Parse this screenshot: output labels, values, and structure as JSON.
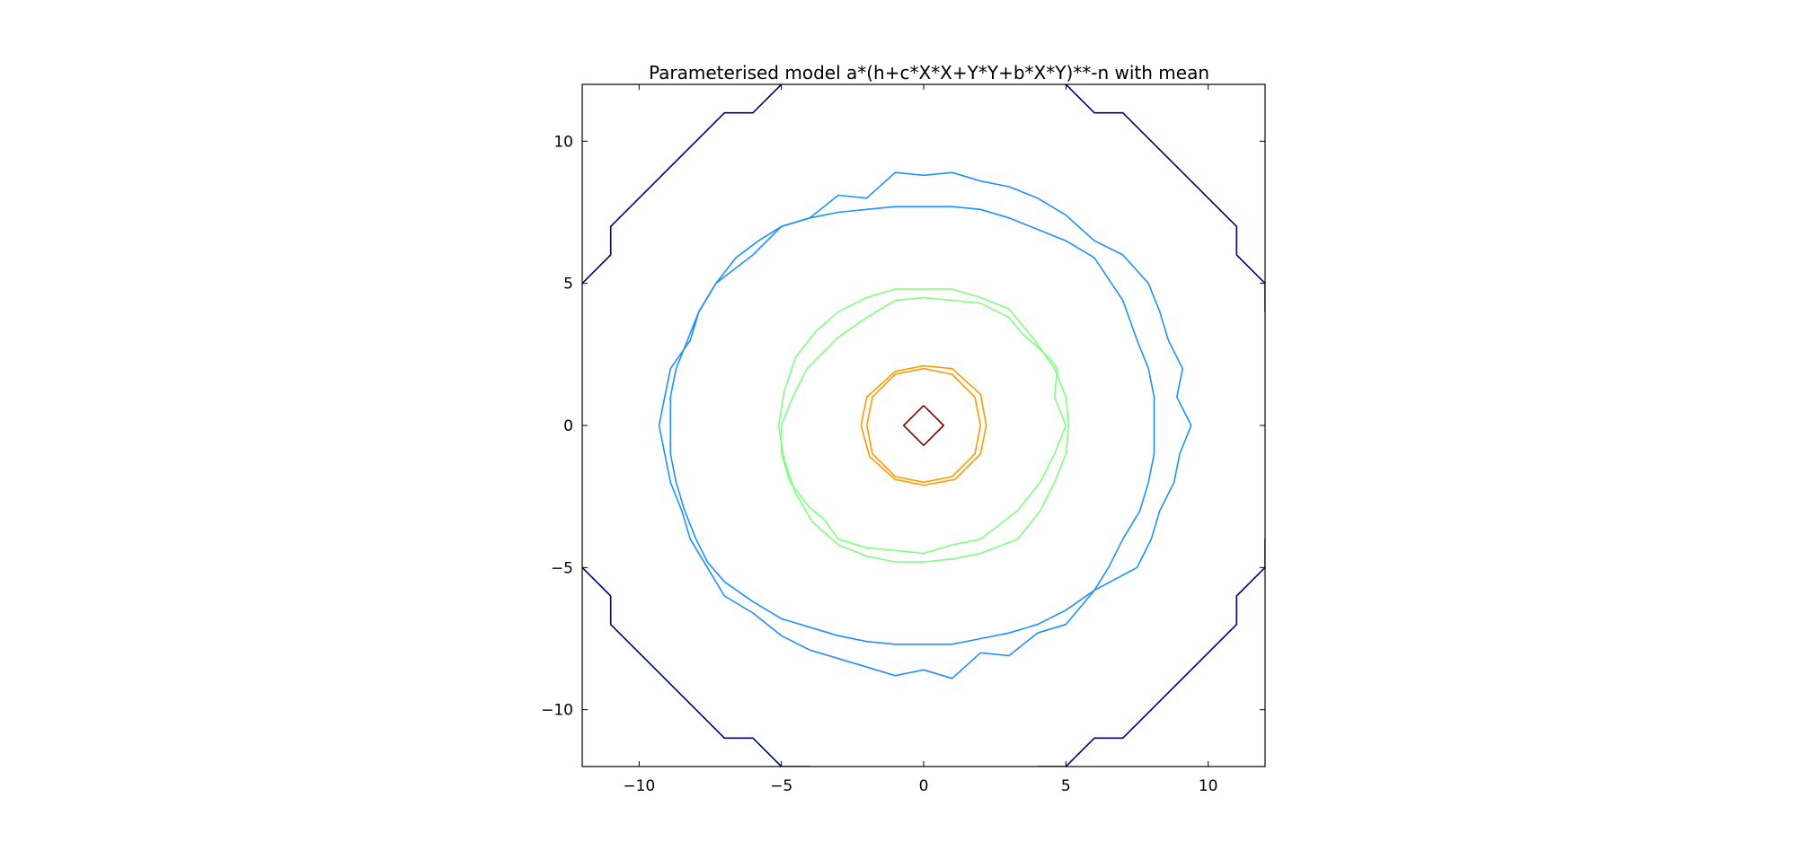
{
  "chart_data": {
    "type": "contour",
    "title": "Parameterised model a*(h+c*X*X+Y*Y+b*X*Y)**-n with mean",
    "xlabel": "",
    "ylabel": "",
    "xlim": [
      -12,
      12
    ],
    "ylim": [
      -12,
      12
    ],
    "x_ticks": [
      -10,
      -5,
      0,
      5,
      10
    ],
    "y_ticks": [
      -10,
      -5,
      0,
      5,
      10
    ],
    "x_tick_labels": [
      "−10",
      "−5",
      "0",
      "5",
      "10"
    ],
    "y_tick_labels": [
      "−10",
      "−5",
      "0",
      "5",
      "10"
    ],
    "grid": false,
    "series": [
      {
        "color": "#00007f",
        "segments": [
          [
            [
              -12,
              5
            ],
            [
              -11,
              6
            ],
            [
              -11,
              7
            ],
            [
              -7,
              11
            ],
            [
              -6,
              11
            ],
            [
              -5,
              12
            ]
          ],
          [
            [
              5,
              12
            ],
            [
              6,
              11
            ],
            [
              7,
              11
            ],
            [
              11,
              7
            ],
            [
              11,
              6
            ],
            [
              12,
              5
            ],
            [
              12,
              4
            ]
          ],
          [
            [
              -12,
              -5
            ],
            [
              -11,
              -6
            ],
            [
              -11,
              -7
            ],
            [
              -7,
              -11
            ],
            [
              -6,
              -11
            ],
            [
              -5,
              -12
            ],
            [
              -4,
              -12
            ]
          ],
          [
            [
              4,
              -12
            ],
            [
              5,
              -12
            ],
            [
              6,
              -11
            ],
            [
              7,
              -11
            ],
            [
              11,
              -7
            ],
            [
              11,
              -6
            ],
            [
              12,
              -5
            ],
            [
              12,
              -4
            ]
          ]
        ]
      },
      {
        "color": "#1e90ff",
        "segments": [
          [
            [
              0,
              7.7
            ],
            [
              1,
              7.7
            ],
            [
              2,
              7.6
            ],
            [
              3,
              7.3
            ],
            [
              4,
              6.9
            ],
            [
              5,
              6.5
            ],
            [
              6,
              5.9
            ],
            [
              6.6,
              5
            ],
            [
              7,
              4.4
            ],
            [
              7.5,
              3
            ],
            [
              7.9,
              2
            ],
            [
              8.1,
              1
            ],
            [
              8.1,
              0
            ],
            [
              8.1,
              -1
            ],
            [
              7.9,
              -2
            ],
            [
              7.6,
              -3
            ],
            [
              7,
              -4
            ],
            [
              6.5,
              -5
            ],
            [
              6,
              -5.8
            ],
            [
              5,
              -6.5
            ],
            [
              4,
              -7
            ],
            [
              3,
              -7.3
            ],
            [
              2,
              -7.5
            ],
            [
              1,
              -7.7
            ],
            [
              0,
              -7.7
            ],
            [
              -1,
              -7.7
            ],
            [
              -2,
              -7.6
            ],
            [
              -3,
              -7.4
            ],
            [
              -4,
              -7.1
            ],
            [
              -5,
              -6.8
            ],
            [
              -6,
              -6.2
            ],
            [
              -7,
              -5.5
            ],
            [
              -7.6,
              -4.8
            ],
            [
              -8,
              -4
            ],
            [
              -8.4,
              -3
            ],
            [
              -8.7,
              -2
            ],
            [
              -8.9,
              -1
            ],
            [
              -8.9,
              0
            ],
            [
              -8.9,
              1
            ],
            [
              -8.7,
              2
            ],
            [
              -8.3,
              3
            ],
            [
              -7.9,
              4
            ],
            [
              -7.3,
              5
            ],
            [
              -6.6,
              5.9
            ],
            [
              -5.8,
              6.5
            ],
            [
              -5,
              7
            ],
            [
              -4,
              7.3
            ],
            [
              -3,
              7.5
            ],
            [
              -2,
              7.6
            ],
            [
              -1,
              7.7
            ],
            [
              0,
              7.7
            ]
          ],
          [
            [
              0,
              8.8
            ],
            [
              1,
              8.9
            ],
            [
              2,
              8.6
            ],
            [
              3,
              8.4
            ],
            [
              4,
              8
            ],
            [
              5,
              7.4
            ],
            [
              6,
              6.5
            ],
            [
              7,
              6
            ],
            [
              7.9,
              5
            ],
            [
              8.3,
              4
            ],
            [
              8.6,
              3
            ],
            [
              9.1,
              2
            ],
            [
              8.9,
              1
            ],
            [
              9.4,
              0
            ],
            [
              9,
              -1
            ],
            [
              8.8,
              -2
            ],
            [
              8.3,
              -3
            ],
            [
              8,
              -4
            ],
            [
              7.5,
              -5
            ],
            [
              6,
              -5.8
            ],
            [
              5,
              -7
            ],
            [
              4,
              -7.3
            ],
            [
              3,
              -8.1
            ],
            [
              2,
              -8
            ],
            [
              1,
              -8.9
            ],
            [
              0,
              -8.6
            ],
            [
              -1,
              -8.8
            ],
            [
              -2,
              -8.5
            ],
            [
              -3,
              -8.2
            ],
            [
              -4,
              -7.9
            ],
            [
              -5,
              -7.4
            ],
            [
              -6,
              -6.6
            ],
            [
              -7,
              -6
            ],
            [
              -7.6,
              -5
            ],
            [
              -8.2,
              -4
            ],
            [
              -8.5,
              -3
            ],
            [
              -8.9,
              -2
            ],
            [
              -9.3,
              0
            ],
            [
              -9.1,
              1
            ],
            [
              -8.9,
              2
            ],
            [
              -8.2,
              3
            ],
            [
              -7.9,
              4
            ],
            [
              -7.3,
              5
            ],
            [
              -6,
              6
            ],
            [
              -5,
              7
            ],
            [
              -4,
              7.3
            ],
            [
              -3,
              8.1
            ],
            [
              -2,
              8
            ],
            [
              -1,
              8.9
            ],
            [
              0,
              8.8
            ]
          ]
        ]
      },
      {
        "color": "#7fff7f",
        "segments": [
          [
            [
              0,
              4.8
            ],
            [
              1,
              4.8
            ],
            [
              2,
              4.5
            ],
            [
              3,
              4.1
            ],
            [
              3.9,
              3
            ],
            [
              4.6,
              2
            ],
            [
              5,
              1
            ],
            [
              5.1,
              0
            ],
            [
              5,
              -1
            ],
            [
              4.6,
              -2
            ],
            [
              4.1,
              -3
            ],
            [
              3.3,
              -4
            ],
            [
              2,
              -4.5
            ],
            [
              1,
              -4.7
            ],
            [
              0,
              -4.8
            ],
            [
              -1,
              -4.8
            ],
            [
              -2,
              -4.6
            ],
            [
              -3,
              -4.2
            ],
            [
              -3.9,
              -3.4
            ],
            [
              -4.5,
              -2.4
            ],
            [
              -4.9,
              -1.2
            ],
            [
              -5.1,
              0
            ],
            [
              -4.9,
              1.2
            ],
            [
              -4.5,
              2.4
            ],
            [
              -3.8,
              3.3
            ],
            [
              -3,
              4
            ],
            [
              -2,
              4.5
            ],
            [
              -1,
              4.8
            ],
            [
              0,
              4.8
            ]
          ],
          [
            [
              0,
              4.5
            ],
            [
              2,
              4.3
            ],
            [
              3,
              3.8
            ],
            [
              3.5,
              3.2
            ],
            [
              4.4,
              2.4
            ],
            [
              4.7,
              2
            ],
            [
              4.6,
              1
            ],
            [
              5,
              0
            ],
            [
              4.6,
              -1
            ],
            [
              4.1,
              -2
            ],
            [
              3.3,
              -3
            ],
            [
              2,
              -4
            ],
            [
              1,
              -4.2
            ],
            [
              0,
              -4.5
            ],
            [
              -2,
              -4.3
            ],
            [
              -3,
              -4
            ],
            [
              -3.5,
              -3.3
            ],
            [
              -4,
              -2.9
            ],
            [
              -4.7,
              -2
            ],
            [
              -5,
              -1
            ],
            [
              -5,
              0
            ],
            [
              -4.6,
              1
            ],
            [
              -4.1,
              2
            ],
            [
              -3,
              3.1
            ],
            [
              -2,
              3.8
            ],
            [
              -1,
              4.4
            ],
            [
              0,
              4.5
            ]
          ]
        ]
      },
      {
        "color": "#ff9900",
        "segments": [
          [
            [
              0,
              2.1
            ],
            [
              1,
              2
            ],
            [
              2,
              1.1
            ],
            [
              2.2,
              0
            ],
            [
              2,
              -1
            ],
            [
              1.1,
              -1.9
            ],
            [
              0,
              -2.1
            ],
            [
              -1,
              -1.9
            ],
            [
              -1.9,
              -1.1
            ],
            [
              -2.2,
              0
            ],
            [
              -2,
              1
            ],
            [
              -1,
              1.9
            ],
            [
              0,
              2.1
            ]
          ],
          [
            [
              0,
              2
            ],
            [
              1,
              1.8
            ],
            [
              1.8,
              1
            ],
            [
              2,
              0
            ],
            [
              1.8,
              -1
            ],
            [
              1,
              -1.8
            ],
            [
              0,
              -2
            ],
            [
              -1,
              -1.8
            ],
            [
              -1.8,
              -1
            ],
            [
              -2,
              0
            ],
            [
              -1.8,
              1
            ],
            [
              -1,
              1.8
            ],
            [
              0,
              2
            ]
          ]
        ]
      },
      {
        "color": "#7f0000",
        "segments": [
          [
            [
              0,
              0.7
            ],
            [
              0.7,
              0
            ],
            [
              0,
              -0.7
            ],
            [
              -0.7,
              0
            ],
            [
              0,
              0.7
            ]
          ]
        ]
      }
    ]
  }
}
